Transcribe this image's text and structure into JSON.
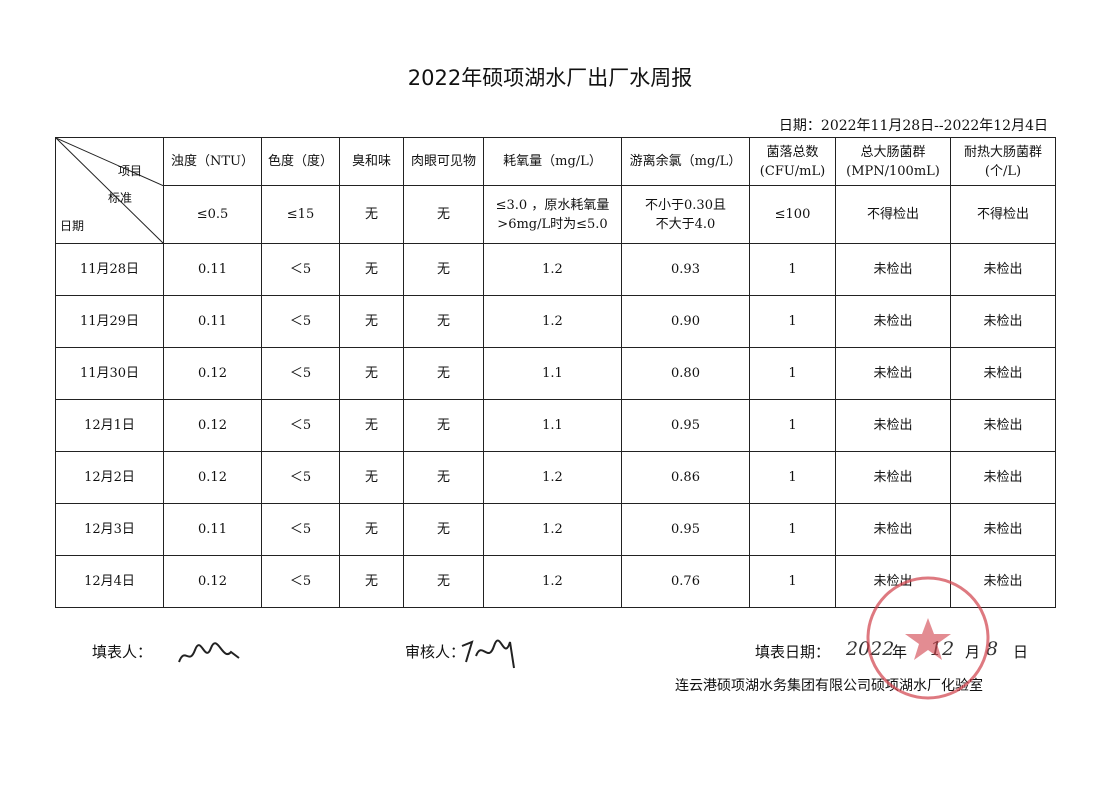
{
  "header": {
    "title": "2022年硕项湖水厂出厂水周报",
    "date_range": "日期：2022年11月28日--2022年12月4日"
  },
  "table": {
    "corner": {
      "item": "项目",
      "standard": "标准",
      "date": "日期"
    },
    "columns": [
      "浊度（NTU）",
      "色度（度）",
      "臭和味",
      "肉眼可见物",
      "耗氧量（mg/L）",
      "游离余氯（mg/L）",
      "菌落总数\n(CFU/mL)",
      "总大肠菌群\n(MPN/100mL)",
      "耐热大肠菌群\n(个/L)"
    ],
    "standards": [
      "≤0.5",
      "≤15",
      "无",
      "无",
      "≤3.0 ，原水耗氧量\n>6mg/L时为≤5.0",
      "不小于0.30且\n不大于4.0",
      "≤100",
      "不得检出",
      "不得检出"
    ],
    "rows": [
      [
        "11月28日",
        "0.11",
        "＜5",
        "无",
        "无",
        "1.2",
        "0.93",
        "1",
        "未检出",
        "未检出"
      ],
      [
        "11月29日",
        "0.11",
        "＜5",
        "无",
        "无",
        "1.2",
        "0.90",
        "1",
        "未检出",
        "未检出"
      ],
      [
        "11月30日",
        "0.12",
        "＜5",
        "无",
        "无",
        "1.1",
        "0.80",
        "1",
        "未检出",
        "未检出"
      ],
      [
        "12月1日",
        "0.12",
        "＜5",
        "无",
        "无",
        "1.1",
        "0.95",
        "1",
        "未检出",
        "未检出"
      ],
      [
        "12月2日",
        "0.12",
        "＜5",
        "无",
        "无",
        "1.2",
        "0.86",
        "1",
        "未检出",
        "未检出"
      ],
      [
        "12月3日",
        "0.11",
        "＜5",
        "无",
        "无",
        "1.2",
        "0.95",
        "1",
        "未检出",
        "未检出"
      ],
      [
        "12月4日",
        "0.12",
        "＜5",
        "无",
        "无",
        "1.2",
        "0.76",
        "1",
        "未检出",
        "未检出"
      ]
    ]
  },
  "footer": {
    "filled_by": "填表人：",
    "reviewer": "审核人：",
    "fill_date_label": "填表日期：",
    "fill_year": "2022",
    "year": "年",
    "fill_month": "12",
    "month": "月",
    "fill_day": "8",
    "day": "日",
    "organization": "连云港硕项湖水务集团有限公司硕项湖水厂化验室"
  }
}
